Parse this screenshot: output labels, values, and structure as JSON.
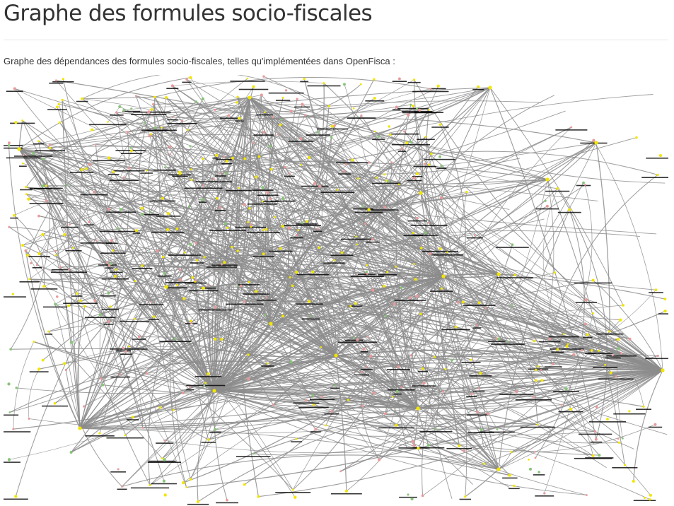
{
  "page": {
    "title": "Graphe des formules socio-fiscales",
    "intro": "Graphe des dépendances des formules socio-fiscales, telles qu'implémentées dans OpenFisca :"
  },
  "graph": {
    "edge_color": "#8c8c8c",
    "label_color": "#000000",
    "node_colors": {
      "input": "#f2e600",
      "formula": "#e89a9a",
      "parameter": "#88c478"
    }
  }
}
